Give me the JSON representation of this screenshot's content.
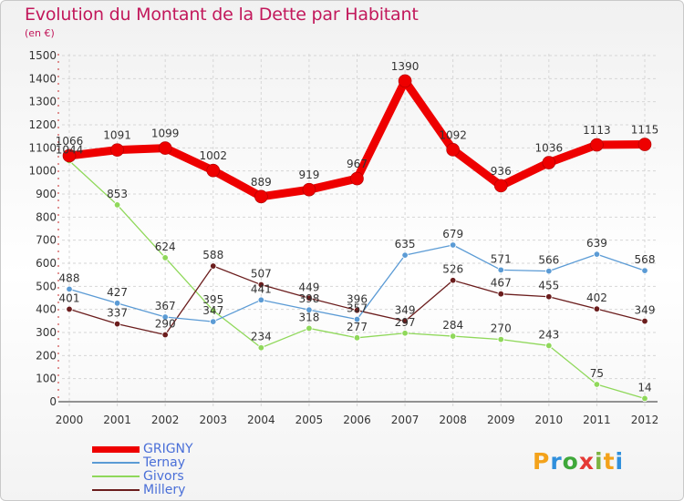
{
  "title": "Evolution du Montant de la Dette par Habitant",
  "unit": "(en €)",
  "logo": [
    "P",
    "r",
    "o",
    "x",
    "i",
    "t",
    "i"
  ],
  "logo_colors": [
    "#f3a21b",
    "#2f8fdc",
    "#3fa83a",
    "#e53935",
    "#7cb342",
    "#f3a21b",
    "#2f8fdc"
  ],
  "chart_data": {
    "type": "line",
    "categories": [
      "2000",
      "2001",
      "2002",
      "2003",
      "2004",
      "2005",
      "2006",
      "2007",
      "2008",
      "2009",
      "2010",
      "2011",
      "2012"
    ],
    "ylim": [
      0,
      1500
    ],
    "yticks": [
      0,
      100,
      200,
      300,
      400,
      500,
      600,
      700,
      800,
      900,
      1000,
      1100,
      1200,
      1300,
      1400,
      1500
    ],
    "grid": true,
    "legend_position": "bottom-left",
    "series": [
      {
        "name": "GRIGNY",
        "color": "#ee0000",
        "values": [
          1066,
          1091,
          1099,
          1002,
          889,
          919,
          967,
          1390,
          1092,
          936,
          1036,
          1113,
          1115
        ]
      },
      {
        "name": "Ternay",
        "color": "#5b9bd5",
        "values": [
          488,
          427,
          367,
          347,
          441,
          398,
          357,
          635,
          679,
          571,
          566,
          639,
          568
        ]
      },
      {
        "name": "Givors",
        "color": "#8fd85a",
        "values": [
          1044,
          853,
          624,
          395,
          234,
          318,
          277,
          297,
          284,
          270,
          243,
          75,
          14
        ]
      },
      {
        "name": "Millery",
        "color": "#6b1d1d",
        "values": [
          401,
          337,
          290,
          588,
          507,
          449,
          396,
          349,
          526,
          467,
          455,
          402,
          349
        ]
      }
    ]
  }
}
